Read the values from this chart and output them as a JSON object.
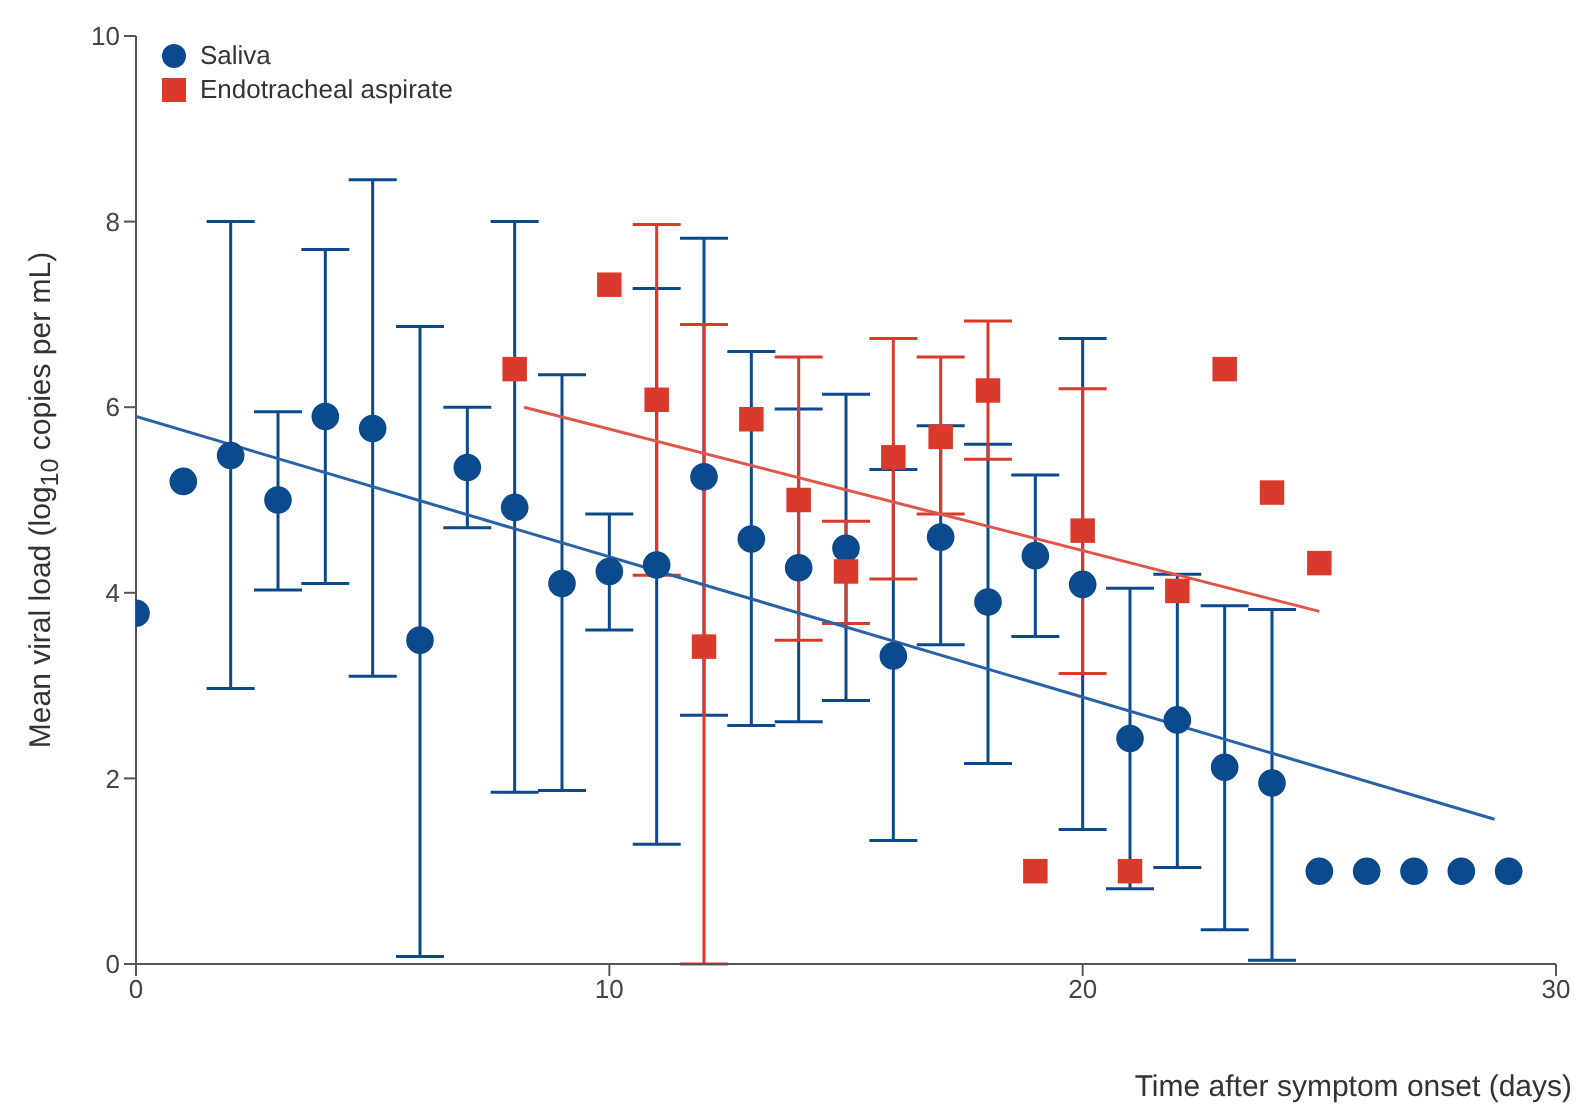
{
  "chart_data": {
    "type": "scatter",
    "xlabel": "Time after symptom onset (days)",
    "ylabel": "Mean viral load (log$_{10}$ copies per mL)",
    "xlim": [
      0,
      30
    ],
    "xticks": [
      0,
      10,
      20,
      30
    ],
    "ylim": [
      0,
      10
    ],
    "yticks": [
      0,
      2,
      4,
      6,
      8,
      10
    ],
    "legend": "top left",
    "series": [
      {
        "name": "Saliva",
        "marker": "circle",
        "color": "#0b4a8c",
        "x": [
          0,
          1,
          2,
          3,
          4,
          5,
          6,
          7,
          8,
          9,
          10,
          11,
          12,
          13,
          14,
          15,
          16,
          17,
          18,
          19,
          20,
          21,
          22,
          23,
          24,
          25,
          26,
          27,
          28,
          29
        ],
        "values": [
          3.78,
          5.2,
          5.48,
          5.0,
          5.9,
          5.77,
          3.49,
          5.35,
          4.92,
          4.1,
          4.23,
          4.3,
          5.25,
          4.58,
          4.27,
          4.48,
          3.32,
          4.6,
          3.9,
          4.4,
          4.09,
          2.43,
          2.63,
          2.12,
          1.95,
          1.0,
          1.0,
          1.0,
          1.0,
          1.0
        ],
        "errors": [
          null,
          null,
          [
            2.97,
            8.0
          ],
          [
            4.03,
            5.95
          ],
          [
            4.1,
            7.7
          ],
          [
            3.1,
            8.45
          ],
          [
            0.08,
            6.87
          ],
          [
            4.7,
            6.0
          ],
          [
            1.85,
            8.0
          ],
          [
            1.87,
            6.35
          ],
          [
            3.6,
            4.85
          ],
          [
            1.29,
            7.28
          ],
          [
            2.68,
            7.82
          ],
          [
            2.57,
            6.6
          ],
          [
            2.61,
            5.98
          ],
          [
            2.84,
            6.14
          ],
          [
            1.33,
            5.33
          ],
          [
            3.44,
            5.8
          ],
          [
            2.16,
            5.6
          ],
          [
            3.53,
            5.27
          ],
          [
            1.45,
            6.74
          ],
          [
            0.81,
            4.05
          ],
          [
            1.04,
            4.2
          ],
          [
            0.37,
            3.86
          ],
          [
            0.04,
            3.82
          ],
          null,
          null,
          null,
          null,
          null
        ]
      },
      {
        "name": "Endotracheal aspirate",
        "marker": "square",
        "color": "#d93a2b",
        "x": [
          8,
          10,
          11,
          12,
          13,
          14,
          15,
          16,
          17,
          18,
          19,
          20,
          21,
          22,
          23,
          24,
          25
        ],
        "values": [
          6.41,
          7.32,
          6.08,
          3.42,
          5.87,
          5.0,
          4.23,
          5.46,
          5.68,
          6.18,
          1.0,
          4.67,
          1.0,
          4.02,
          6.41,
          5.08,
          4.32
        ],
        "errors": [
          null,
          null,
          [
            4.19,
            7.97
          ],
          [
            0,
            6.89
          ],
          null,
          [
            3.49,
            6.54
          ],
          [
            3.67,
            4.77
          ],
          [
            4.15,
            6.74
          ],
          [
            4.85,
            6.54
          ],
          [
            5.44,
            6.93
          ],
          null,
          [
            3.13,
            6.2
          ],
          null,
          null,
          null,
          null,
          null
        ]
      },
      {
        "type": "line",
        "marker": "none",
        "color": "#2a62a8",
        "x": [
          0,
          28.7
        ],
        "values": [
          5.9,
          1.56
        ]
      },
      {
        "type": "line",
        "marker": "none",
        "color": "#e0574a",
        "x": [
          8.2,
          25
        ],
        "values": [
          6.0,
          3.8
        ]
      }
    ]
  }
}
